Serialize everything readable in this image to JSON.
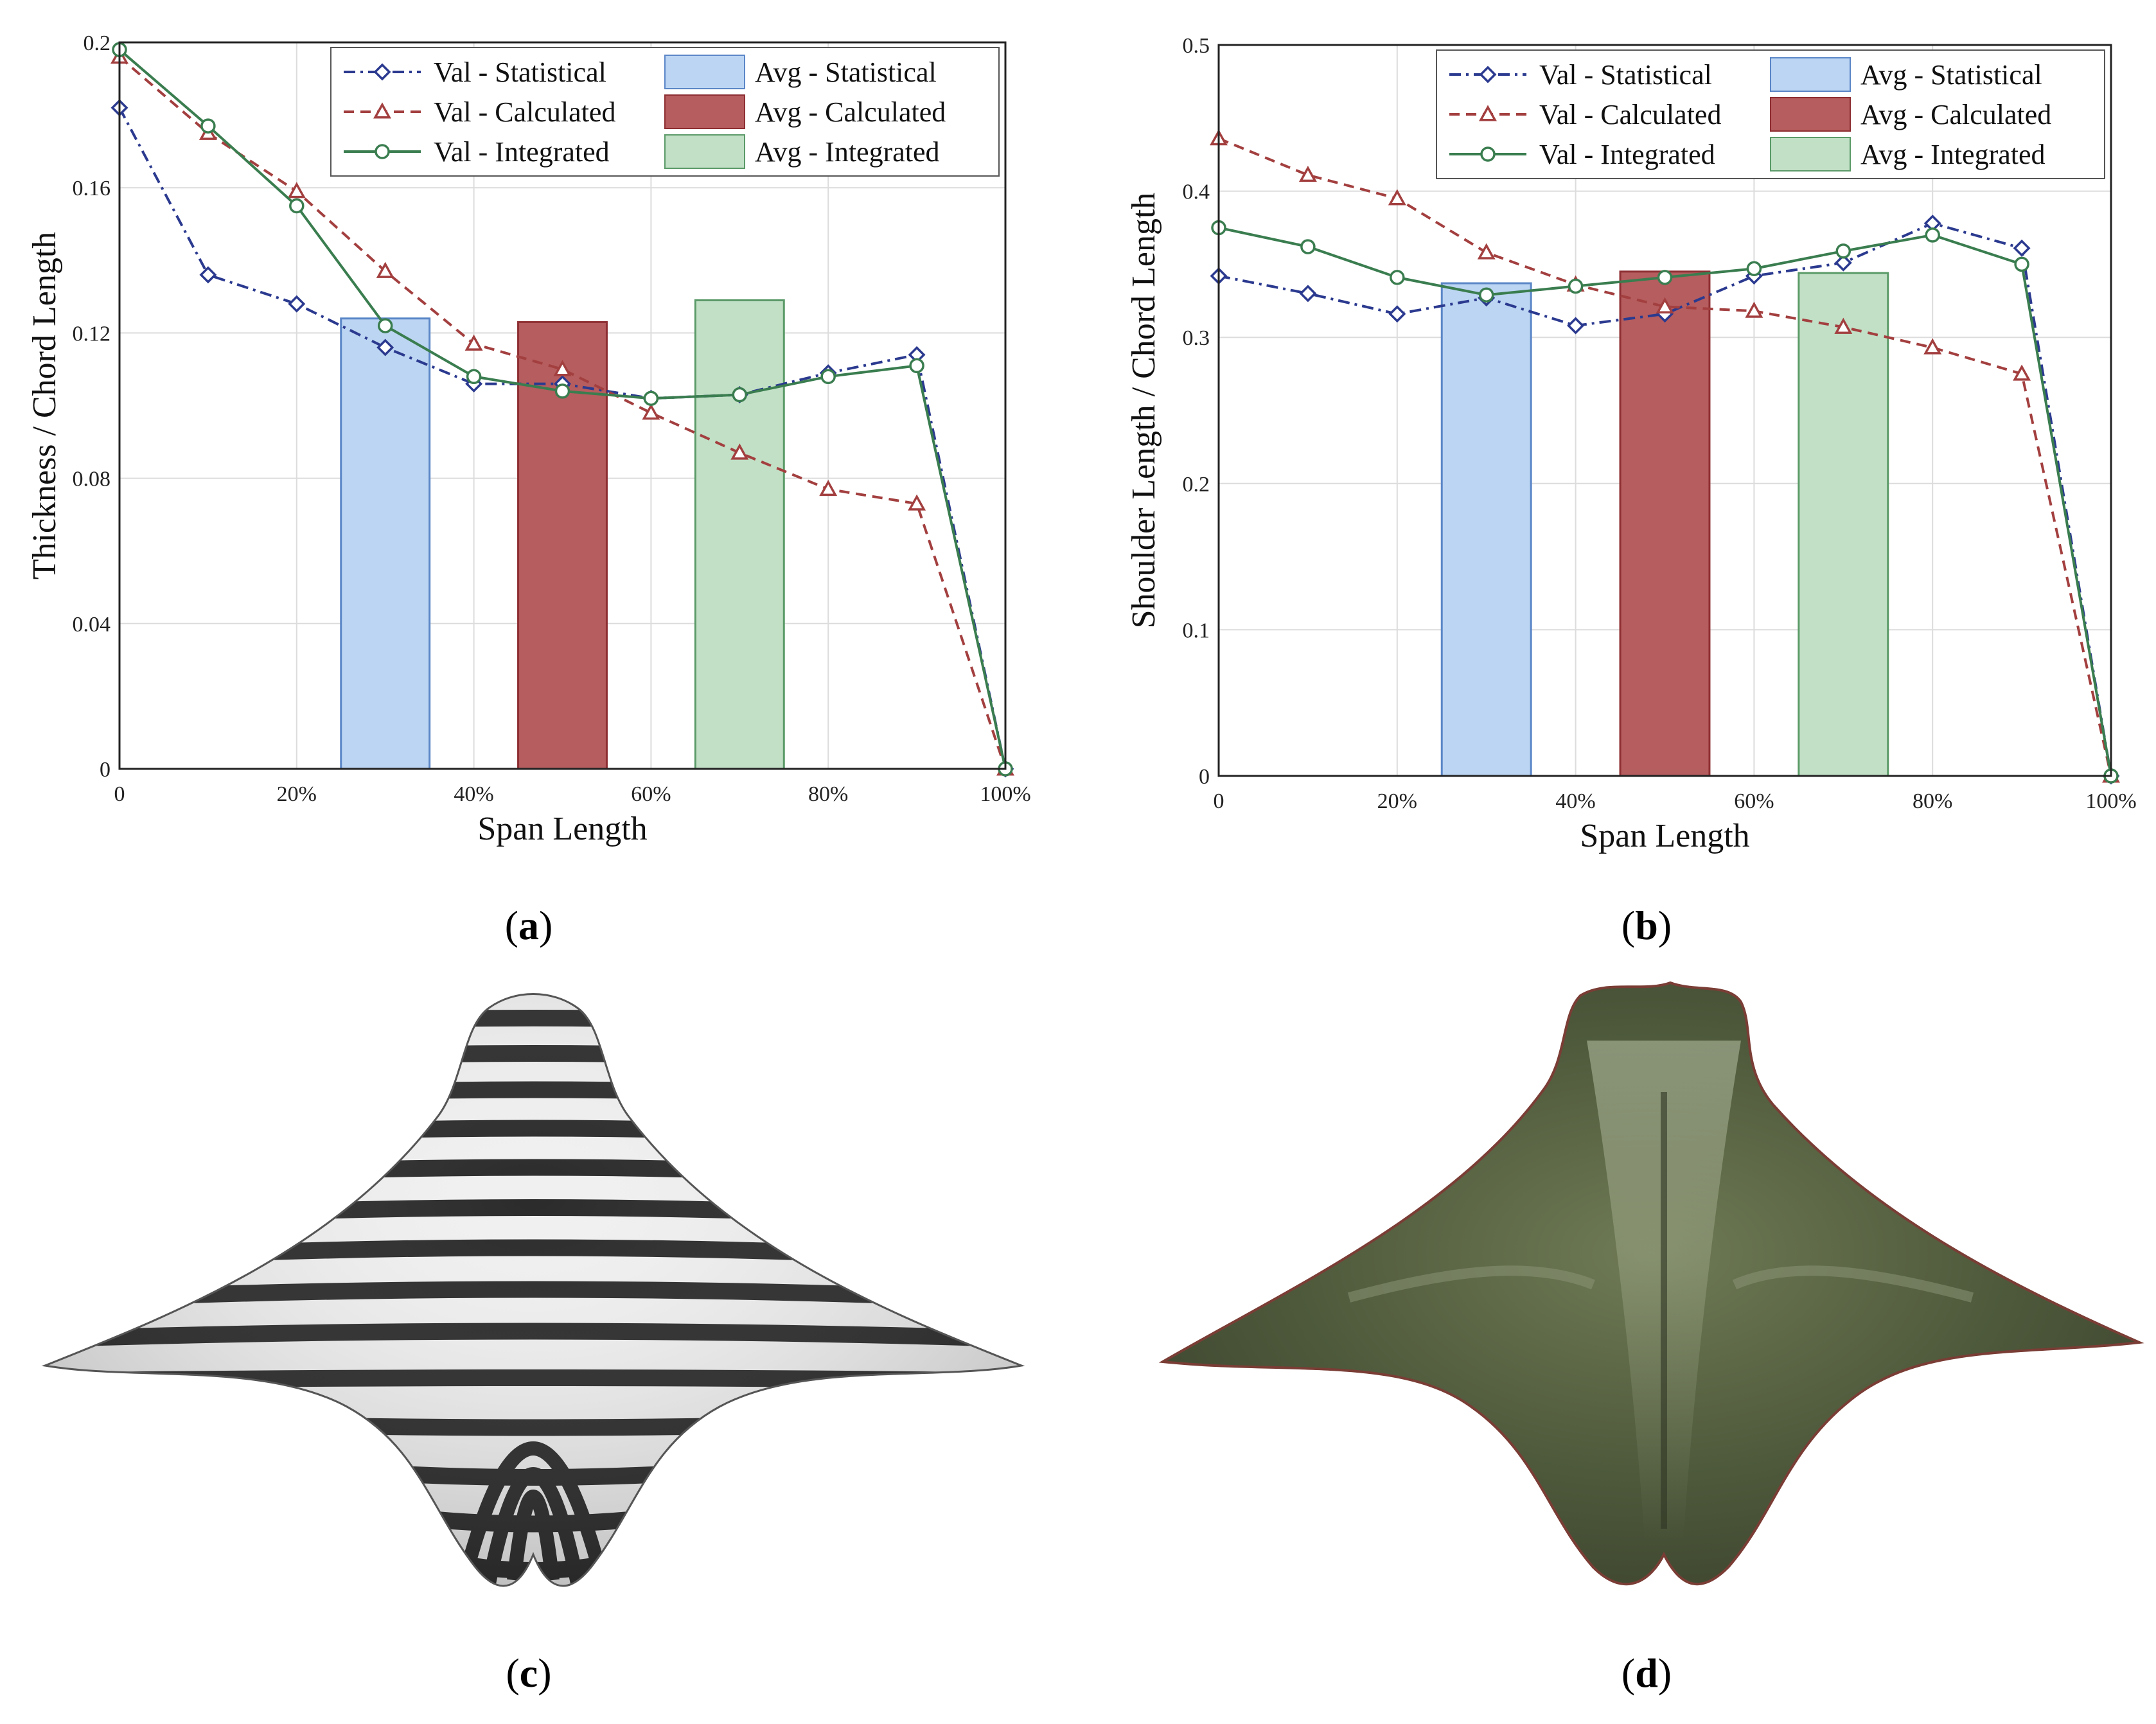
{
  "colors": {
    "statistical_line": "#2b3a8f",
    "calculated_line": "#a33f3f",
    "integrated_line": "#3a7d4f",
    "statistical_bar": "#bcd5f2",
    "statistical_bar_edge": "#5b86c7",
    "calculated_bar": "#b55d5f",
    "calculated_bar_edge": "#8e2f33",
    "integrated_bar": "#c2e0c6",
    "integrated_bar_edge": "#5a9a68",
    "grid": "#dcdcdc"
  },
  "panels": [
    {
      "label": "(",
      "letter": "a",
      "close": ")"
    },
    {
      "label": "(",
      "letter": "b",
      "close": ")"
    },
    {
      "label": "(",
      "letter": "c",
      "close": ")"
    },
    {
      "label": "(",
      "letter": "d",
      "close": ")"
    }
  ],
  "images": {
    "c": {
      "description_icon": "striped-ray-model-icon"
    },
    "d": {
      "description_icon": "manta-ray-photo-icon"
    }
  },
  "chart_data": [
    {
      "type": "line",
      "panel": "a",
      "xlabel": "Span Length",
      "ylabel": "Thickness / Chord Length",
      "xlim": [
        0,
        100
      ],
      "ylim": [
        0,
        0.2
      ],
      "xticks": [
        0,
        20,
        40,
        60,
        80,
        100
      ],
      "xtick_labels": [
        "0",
        "20%",
        "40%",
        "60%",
        "80%",
        "100%"
      ],
      "yticks": [
        0,
        0.04,
        0.08,
        0.12,
        0.16,
        0.2
      ],
      "ytick_labels": [
        "0",
        "0.04",
        "0.08",
        "0.12",
        "0.16",
        "0.2"
      ],
      "grid": true,
      "legend_position": "top-right",
      "x": [
        0,
        10,
        20,
        30,
        40,
        50,
        60,
        70,
        80,
        90,
        100
      ],
      "series": [
        {
          "name": "Val - Statistical",
          "key": "statistical",
          "marker": "diamond",
          "dash": "dashdot",
          "values": [
            0.182,
            0.136,
            0.128,
            0.116,
            0.106,
            0.106,
            0.102,
            0.103,
            0.109,
            0.114,
            0.0
          ]
        },
        {
          "name": "Val - Calculated",
          "key": "calculated",
          "marker": "triangle",
          "dash": "dashed",
          "values": [
            0.196,
            0.175,
            0.159,
            0.137,
            0.117,
            0.11,
            0.098,
            0.087,
            0.077,
            0.073,
            0.0
          ]
        },
        {
          "name": "Val - Integrated",
          "key": "integrated",
          "marker": "circle",
          "dash": "solid",
          "values": [
            0.198,
            0.177,
            0.155,
            0.122,
            0.108,
            0.104,
            0.102,
            0.103,
            0.108,
            0.111,
            0.0
          ]
        }
      ],
      "bars": [
        {
          "name": "Avg - Statistical",
          "key": "statistical",
          "x_from": 25,
          "x_to": 35,
          "value": 0.124
        },
        {
          "name": "Avg - Calculated",
          "key": "calculated",
          "x_from": 45,
          "x_to": 55,
          "value": 0.123
        },
        {
          "name": "Avg - Integrated",
          "key": "integrated",
          "x_from": 65,
          "x_to": 75,
          "value": 0.129
        }
      ]
    },
    {
      "type": "line",
      "panel": "b",
      "xlabel": "Span Length",
      "ylabel": "Shoulder Length / Chord Length",
      "xlim": [
        0,
        100
      ],
      "ylim": [
        0,
        0.5
      ],
      "xticks": [
        0,
        20,
        40,
        60,
        80,
        100
      ],
      "xtick_labels": [
        "0",
        "20%",
        "40%",
        "60%",
        "80%",
        "100%"
      ],
      "yticks": [
        0,
        0.1,
        0.2,
        0.3,
        0.4,
        0.5
      ],
      "ytick_labels": [
        "0",
        "0.1",
        "0.2",
        "0.3",
        "0.4",
        "0.5"
      ],
      "grid": true,
      "legend_position": "top-right",
      "x": [
        0,
        10,
        20,
        30,
        40,
        50,
        60,
        70,
        80,
        90,
        100
      ],
      "series": [
        {
          "name": "Val - Statistical",
          "key": "statistical",
          "marker": "diamond",
          "dash": "dashdot",
          "values": [
            0.342,
            0.33,
            0.316,
            0.327,
            0.308,
            0.316,
            0.342,
            0.351,
            0.378,
            0.361,
            0.0
          ]
        },
        {
          "name": "Val - Calculated",
          "key": "calculated",
          "marker": "triangle",
          "dash": "dashed",
          "values": [
            0.436,
            0.411,
            0.395,
            0.358,
            0.336,
            0.321,
            0.318,
            0.307,
            0.293,
            0.275,
            0.0
          ]
        },
        {
          "name": "Val - Integrated",
          "key": "integrated",
          "marker": "circle",
          "dash": "solid",
          "values": [
            0.375,
            0.362,
            0.341,
            0.329,
            0.335,
            0.341,
            0.347,
            0.359,
            0.37,
            0.35,
            0.0
          ]
        }
      ],
      "bars": [
        {
          "name": "Avg - Statistical",
          "key": "statistical",
          "x_from": 25,
          "x_to": 35,
          "value": 0.337
        },
        {
          "name": "Avg - Calculated",
          "key": "calculated",
          "x_from": 45,
          "x_to": 55,
          "value": 0.345
        },
        {
          "name": "Avg - Integrated",
          "key": "integrated",
          "x_from": 65,
          "x_to": 75,
          "value": 0.344
        }
      ]
    }
  ]
}
